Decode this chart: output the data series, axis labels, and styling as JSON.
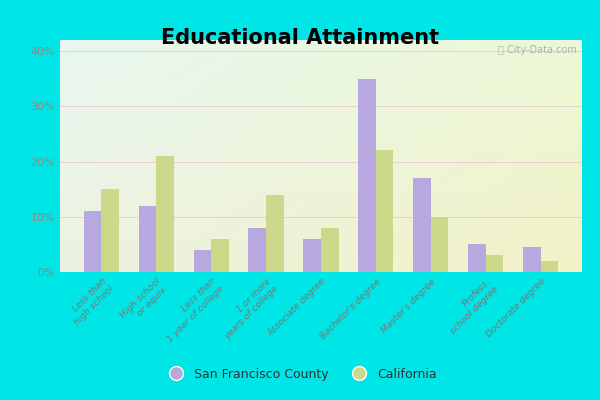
{
  "title": "Educational Attainment",
  "categories": [
    "Less than\nhigh school",
    "High school\nor equiv.",
    "Less than\n1 year of college",
    "1 or more\nyears of college",
    "Associate degree",
    "Bachelor's degree",
    "Master's degree",
    "Profess.\nschool degree",
    "Doctorate degree"
  ],
  "sf_values": [
    11,
    12,
    4,
    8,
    6,
    35,
    17,
    5,
    4.5
  ],
  "ca_values": [
    15,
    21,
    6,
    14,
    8,
    22,
    10,
    3,
    2
  ],
  "sf_color": "#b8a8e0",
  "ca_color": "#ccd88a",
  "sf_label": "San Francisco County",
  "ca_label": "California",
  "ylim": [
    0,
    42
  ],
  "yticks": [
    0,
    10,
    20,
    30,
    40
  ],
  "ytick_labels": [
    "0%",
    "10%",
    "20%",
    "30%",
    "40%"
  ],
  "title_fontsize": 15,
  "watermark": "ⓘ City-Data.com",
  "outer_bg": "#00e5e5"
}
